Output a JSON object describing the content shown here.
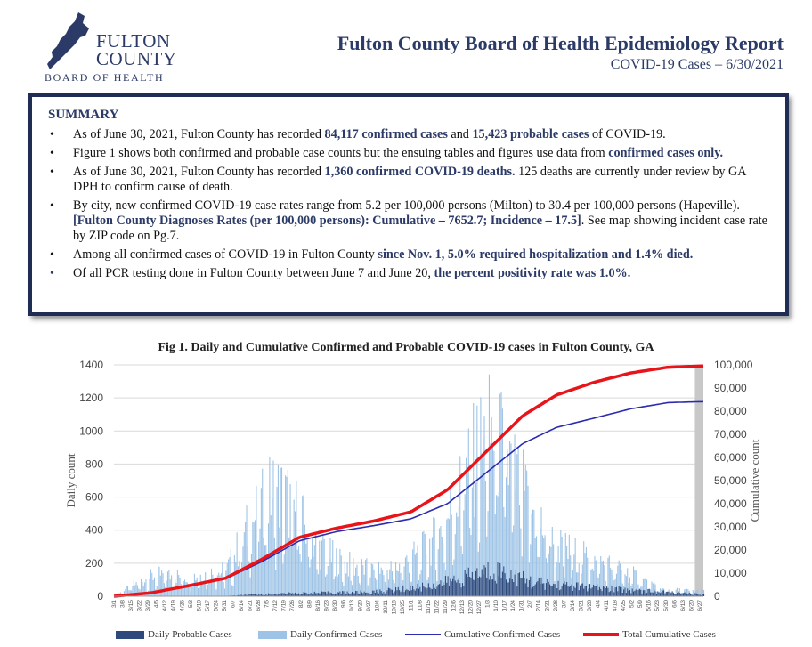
{
  "header": {
    "logo_line1": "FULTON",
    "logo_line2": "COUNTY",
    "logo_line3": "BOARD OF HEALTH",
    "title": "Fulton County Board of Health Epidemiology Report",
    "subtitle": "COVID-19 Cases – 6/30/2021"
  },
  "summary": {
    "title": "SUMMARY",
    "b1": {
      "t1": "As of June 30, 2021, Fulton County has recorded ",
      "h1": "84,117 confirmed cases",
      "t2": " and ",
      "h2": "15,423 probable cases",
      "t3": " of COVID-19."
    },
    "b2": {
      "t1": "Figure 1 shows both confirmed and probable case counts but the ensuing tables and figures use data from ",
      "h1": "confirmed cases only."
    },
    "b3": {
      "t1": "As of June 30, 2021, Fulton County has recorded ",
      "h1": "1,360 confirmed COVID-19 deaths.",
      "t2": " 125 deaths are currently under review by GA DPH to confirm cause of death."
    },
    "b4": {
      "t1": "By city, new confirmed COVID-19 case rates range from 5.2 per 100,000 persons (Milton) to 30.4 per 100,000 persons (Hapeville). ",
      "h1": "[Fulton County Diagnoses Rates (per 100,000 persons): Cumulative – 7652.7; Incidence – 17.5]",
      "t2": ". See map showing incident case rate by ZIP code on Pg.7."
    },
    "b5": {
      "t1": "Among all confirmed cases of COVID-19 in Fulton County ",
      "h1": "since Nov. 1, 5.0% required hospitalization and 1.4% died."
    },
    "b6": {
      "t1": "Of all PCR testing done in Fulton County between June 7 and June 20, ",
      "h1": "the percent positivity rate was 1.0%."
    }
  },
  "figure": {
    "title": "Fig 1. Daily and Cumulative Confirmed and Probable COVID-19 cases in Fulton County, GA"
  },
  "legend": {
    "probable": "Daily Probable Cases",
    "confirmed": "Daily Confirmed Cases",
    "cum_confirmed": "Cumulative Confirmed Cases",
    "total": "Total Cumulative Cases"
  },
  "chart_data": {
    "type": "bar",
    "ylabel": "Daily count",
    "y2label": "Cumulative count",
    "ylim": [
      0,
      1400
    ],
    "y2lim": [
      0,
      100000
    ],
    "yticks": [
      "0",
      "200",
      "400",
      "600",
      "800",
      "1000",
      "1200",
      "1400"
    ],
    "y2ticks": [
      "0",
      "10,000",
      "20,000",
      "30,000",
      "40,000",
      "50,000",
      "60,000",
      "70,000",
      "80,000",
      "90,000",
      "100,000"
    ],
    "grid": true,
    "legend_position": "bottom",
    "x_start": "2020-03-01",
    "x_end": "2021-06-30",
    "daily_confirmed_anchors": [
      [
        "2020-03-01",
        5
      ],
      [
        "2020-03-20",
        80
      ],
      [
        "2020-04-05",
        130
      ],
      [
        "2020-05-01",
        120
      ],
      [
        "2020-06-01",
        150
      ],
      [
        "2020-06-20",
        420
      ],
      [
        "2020-07-10",
        640
      ],
      [
        "2020-07-25",
        560
      ],
      [
        "2020-08-15",
        300
      ],
      [
        "2020-09-05",
        200
      ],
      [
        "2020-10-01",
        150
      ],
      [
        "2020-10-20",
        170
      ],
      [
        "2020-11-10",
        270
      ],
      [
        "2020-11-25",
        380
      ],
      [
        "2020-12-10",
        620
      ],
      [
        "2020-12-25",
        860
      ],
      [
        "2021-01-08",
        1000
      ],
      [
        "2021-01-20",
        800
      ],
      [
        "2021-02-05",
        560
      ],
      [
        "2021-02-25",
        320
      ],
      [
        "2021-03-20",
        240
      ],
      [
        "2021-04-15",
        180
      ],
      [
        "2021-05-05",
        120
      ],
      [
        "2021-05-25",
        40
      ],
      [
        "2021-06-30",
        30
      ]
    ],
    "daily_probable_anchors": [
      [
        "2020-03-01",
        0
      ],
      [
        "2020-06-01",
        2
      ],
      [
        "2020-07-15",
        15
      ],
      [
        "2020-10-01",
        25
      ],
      [
        "2020-11-15",
        60
      ],
      [
        "2020-12-15",
        110
      ],
      [
        "2021-01-08",
        160
      ],
      [
        "2021-02-10",
        80
      ],
      [
        "2021-04-01",
        50
      ],
      [
        "2021-05-15",
        30
      ],
      [
        "2021-06-30",
        10
      ]
    ],
    "cumulative_confirmed": [
      [
        "2020-03-01",
        0
      ],
      [
        "2020-04-01",
        1500
      ],
      [
        "2020-05-01",
        4500
      ],
      [
        "2020-06-01",
        7500
      ],
      [
        "2020-07-01",
        15000
      ],
      [
        "2020-08-01",
        24000
      ],
      [
        "2020-09-01",
        28000
      ],
      [
        "2020-10-01",
        30500
      ],
      [
        "2020-11-01",
        33500
      ],
      [
        "2020-12-01",
        40000
      ],
      [
        "2021-01-01",
        53000
      ],
      [
        "2021-02-01",
        66000
      ],
      [
        "2021-03-01",
        73000
      ],
      [
        "2021-04-01",
        77000
      ],
      [
        "2021-05-01",
        81000
      ],
      [
        "2021-06-01",
        83700
      ],
      [
        "2021-06-30",
        84117
      ]
    ],
    "total_cumulative": [
      [
        "2020-03-01",
        0
      ],
      [
        "2020-04-01",
        1500
      ],
      [
        "2020-05-01",
        4500
      ],
      [
        "2020-06-01",
        7800
      ],
      [
        "2020-07-01",
        16000
      ],
      [
        "2020-08-01",
        25500
      ],
      [
        "2020-09-01",
        29500
      ],
      [
        "2020-10-01",
        32500
      ],
      [
        "2020-11-01",
        36500
      ],
      [
        "2020-12-01",
        46000
      ],
      [
        "2021-01-01",
        62000
      ],
      [
        "2021-02-01",
        78000
      ],
      [
        "2021-03-01",
        87000
      ],
      [
        "2021-04-01",
        92500
      ],
      [
        "2021-05-01",
        96500
      ],
      [
        "2021-06-01",
        99000
      ],
      [
        "2021-06-30",
        99540
      ]
    ],
    "series": [
      {
        "name": "Daily Probable Cases",
        "color": "#2e4a7d"
      },
      {
        "name": "Daily Confirmed Cases",
        "color": "#9dc3e6"
      },
      {
        "name": "Cumulative Confirmed Cases",
        "color": "#2b2bb0"
      },
      {
        "name": "Total Cumulative Cases",
        "color": "#e8141a"
      }
    ]
  }
}
